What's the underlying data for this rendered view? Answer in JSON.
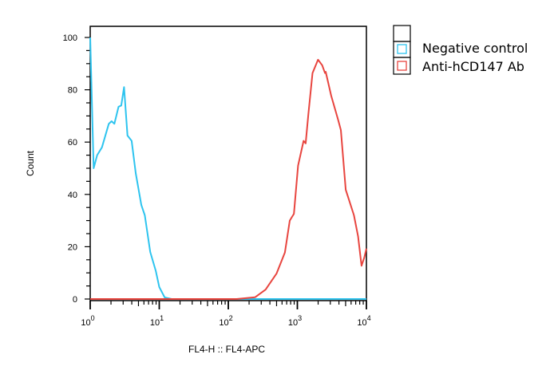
{
  "chart_data": {
    "type": "line",
    "title": "",
    "xlabel": "FL4-H :: FL4-APC",
    "ylabel": "Count",
    "xscale": "log",
    "xlim": [
      1,
      10000
    ],
    "ylim": [
      0,
      100
    ],
    "xticks": [
      {
        "base": "10",
        "exp": "0",
        "value": 1
      },
      {
        "base": "10",
        "exp": "1",
        "value": 10
      },
      {
        "base": "10",
        "exp": "2",
        "value": 100
      },
      {
        "base": "10",
        "exp": "3",
        "value": 1000
      },
      {
        "base": "10",
        "exp": "4",
        "value": 10000
      }
    ],
    "yticks": [
      "0",
      "20",
      "40",
      "60",
      "80",
      "100"
    ],
    "grid": false,
    "legend_position": "top-right outside",
    "series": [
      {
        "name": "Negative control",
        "color": "#2ec4ef",
        "x": [
          1.0,
          1.12,
          1.26,
          1.48,
          1.86,
          2.04,
          2.24,
          2.57,
          2.82,
          3.09,
          3.47,
          3.98,
          4.57,
          5.5,
          6.17,
          7.41,
          8.91,
          10,
          12,
          15.1,
          10000
        ],
        "y": [
          100,
          50,
          55,
          58,
          67,
          68,
          67,
          73.5,
          74,
          81,
          62.5,
          60.5,
          48,
          36,
          32,
          18,
          10.7,
          4.6,
          0.6,
          0,
          0
        ]
      },
      {
        "name": "Anti-hCD147 Ab",
        "color": "#e8453f",
        "x": [
          1,
          132,
          245,
          347,
          501,
          661,
          776,
          891,
          1023,
          1230,
          1318,
          1445,
          1660,
          1995,
          2291,
          2512,
          2570,
          3090,
          3890,
          4266,
          5012,
          6607,
          7586,
          8511,
          9333,
          10000
        ],
        "y": [
          0,
          0,
          0.7,
          3.6,
          9.8,
          17.8,
          30,
          32.6,
          51,
          60.5,
          59.5,
          70.7,
          86.4,
          91.5,
          89.4,
          86.4,
          86.9,
          77.7,
          68.6,
          64.6,
          41.8,
          32,
          23.9,
          12.7,
          15.9,
          19.3
        ]
      }
    ]
  }
}
